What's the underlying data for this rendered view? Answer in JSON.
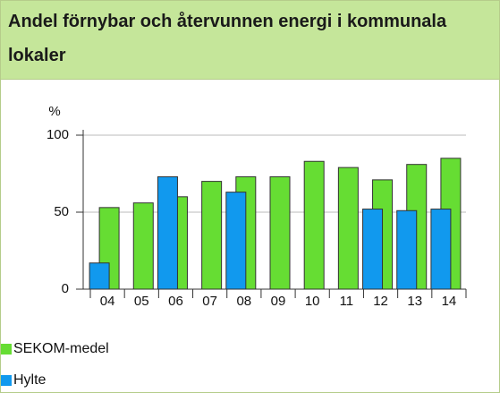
{
  "chart_data": {
    "type": "bar",
    "title": "Andel förnybar och återvunnen energi i kommunala lokaler",
    "y_label": "%",
    "categories": [
      "04",
      "05",
      "06",
      "07",
      "08",
      "09",
      "10",
      "11",
      "12",
      "13",
      "14"
    ],
    "series": [
      {
        "name": "SEKOM-medel",
        "color": "#66dd33",
        "values": [
          53,
          56,
          60,
          70,
          73,
          73,
          83,
          79,
          71,
          81,
          85
        ]
      },
      {
        "name": "Hylte",
        "color": "#1199ee",
        "values": [
          17,
          null,
          73,
          null,
          63,
          null,
          null,
          null,
          52,
          51,
          52
        ]
      }
    ],
    "ylim": [
      0,
      100
    ],
    "yticks": [
      0,
      50,
      100
    ],
    "grid": true
  }
}
